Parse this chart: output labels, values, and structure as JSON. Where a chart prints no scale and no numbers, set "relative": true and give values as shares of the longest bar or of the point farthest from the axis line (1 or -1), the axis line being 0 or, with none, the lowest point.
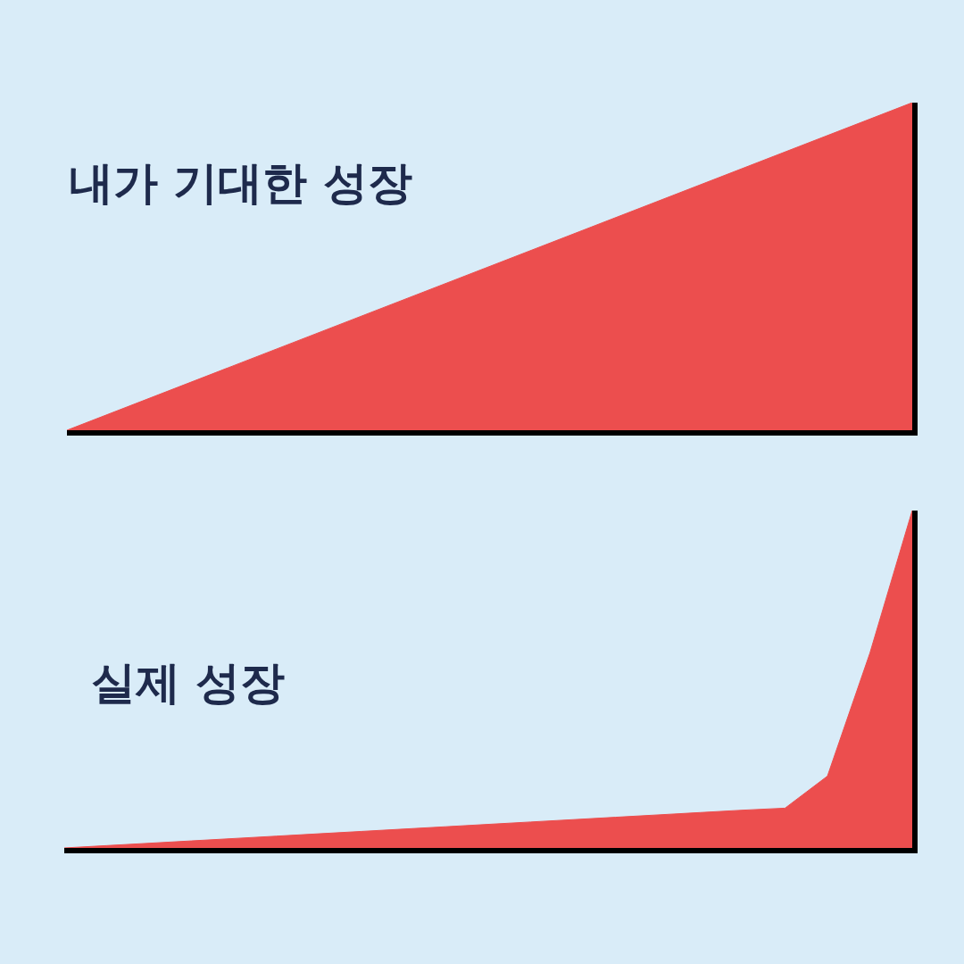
{
  "chart_data": [
    {
      "type": "area",
      "title": "내가 기대한 성장",
      "relative": true,
      "categories": [
        null,
        null
      ],
      "series": [
        {
          "color": "#ec4e4e",
          "values": [
            0,
            1
          ]
        }
      ],
      "grid": false,
      "tick_labels": false
    },
    {
      "type": "area",
      "title": "실제 성장",
      "relative": true,
      "categories": [
        null,
        null,
        null,
        null,
        null,
        null,
        null,
        null,
        null,
        null,
        null,
        null,
        null,
        null,
        null,
        null,
        null,
        null,
        null,
        null,
        null
      ],
      "series": [
        {
          "color": "#ec4e4e",
          "values": [
            0,
            0.007,
            0.014,
            0.021,
            0.028,
            0.035,
            0.042,
            0.049,
            0.056,
            0.063,
            0.07,
            0.077,
            0.084,
            0.091,
            0.098,
            0.105,
            0.112,
            0.118,
            0.213,
            0.577,
            1
          ]
        }
      ],
      "grid": false,
      "tick_labels": false
    }
  ]
}
